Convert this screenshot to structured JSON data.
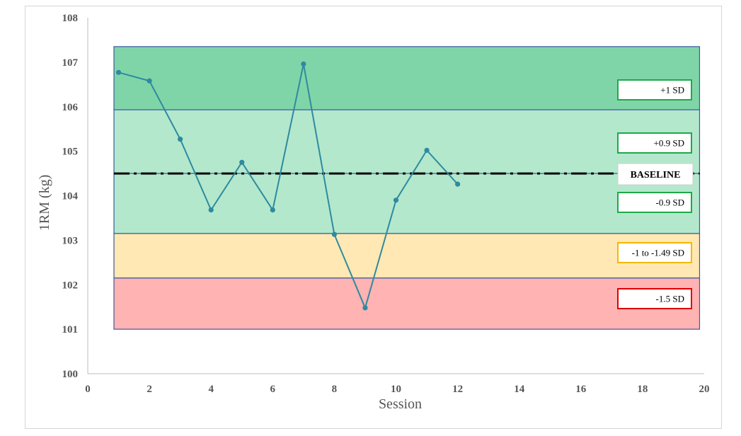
{
  "chart_data": {
    "type": "line",
    "title": "",
    "xlabel": "Session",
    "ylabel": "1RM (kg)",
    "xlim": [
      0,
      20
    ],
    "ylim": [
      100,
      108
    ],
    "xticks": [
      0,
      2,
      4,
      6,
      8,
      10,
      12,
      14,
      16,
      18,
      20
    ],
    "yticks": [
      100,
      101,
      102,
      103,
      104,
      105,
      106,
      107,
      108
    ],
    "grid": false,
    "series": [
      {
        "x": [
          1,
          2,
          3,
          4,
          5,
          6,
          7,
          8,
          9,
          10,
          11,
          12
        ],
        "y": [
          106.77,
          106.58,
          105.27,
          103.68,
          104.75,
          103.68,
          106.96,
          103.13,
          101.48,
          103.9,
          105.02,
          104.26
        ],
        "color": "#2e8aa0"
      }
    ],
    "baseline": {
      "label": "BASELINE",
      "value": 104.5,
      "color": "#000000"
    },
    "zones": [
      {
        "label": "+1 SD",
        "from": 105.93,
        "to": 107.35,
        "fill": "#80d5a8",
        "border": "#1fa84a"
      },
      {
        "label": "+0.9 SD",
        "from": 104.5,
        "to": 105.93,
        "fill": "#b3e8cc",
        "border": "#1fa84a"
      },
      {
        "label": "-0.9 SD",
        "from": 103.15,
        "to": 104.5,
        "fill": "#b3e8cc",
        "border": "#1fa84a"
      },
      {
        "label": "-1 to -1.49 SD",
        "from": 102.15,
        "to": 103.15,
        "fill": "#ffe8b3",
        "border": "#f5b800"
      },
      {
        "label": "-1.5 SD",
        "from": 101.0,
        "to": 102.15,
        "fill": "#ffb3b3",
        "border": "#e00000"
      }
    ],
    "zone_x_range": [
      0.85,
      19.85
    ]
  }
}
